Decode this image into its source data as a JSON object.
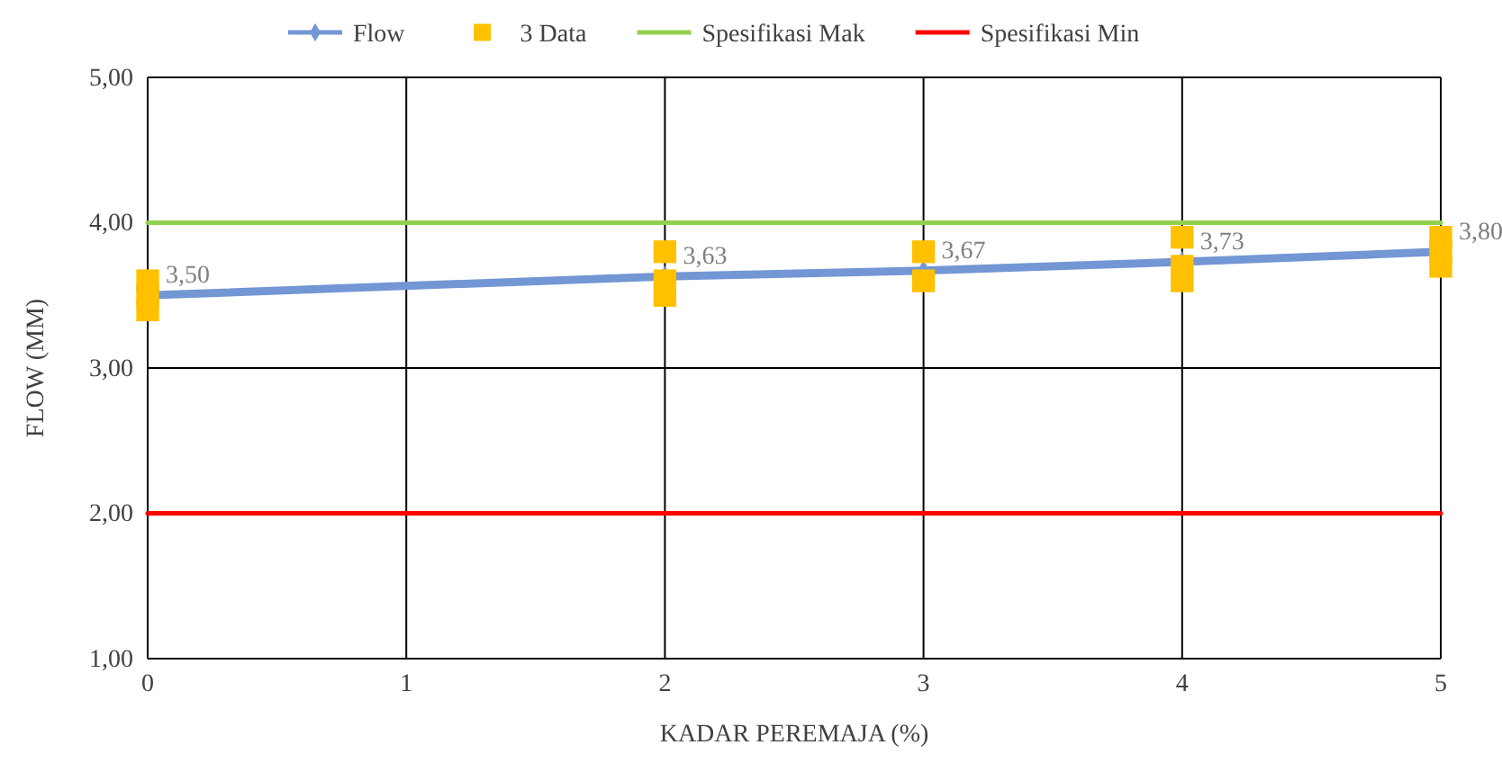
{
  "chart_data": {
    "type": "line",
    "xlabel": "KADAR PEREMAJA (%)",
    "ylabel": "FLOW (MM)",
    "xlim": [
      0,
      5
    ],
    "xticks": [
      0,
      1,
      2,
      3,
      4,
      5
    ],
    "ylim": [
      1,
      5
    ],
    "yticks": [
      {
        "value": 1,
        "label": "1,00"
      },
      {
        "value": 2,
        "label": "2,00"
      },
      {
        "value": 3,
        "label": "3,00"
      },
      {
        "value": 4,
        "label": "4,00"
      },
      {
        "value": 5,
        "label": "5,00"
      }
    ],
    "grid": true,
    "legend": "top",
    "series": [
      {
        "name": "Flow",
        "color": "#7396d4",
        "marker": "diamond",
        "x": [
          0,
          2,
          3,
          4,
          5
        ],
        "values": [
          3.5,
          3.63,
          3.67,
          3.73,
          3.8
        ],
        "value_labels": [
          "3,50",
          "3,63",
          "3,67",
          "3,73",
          "3,80"
        ]
      },
      {
        "name": "3 Data",
        "type": "scatter",
        "color": "#ffc000",
        "marker": "square",
        "x": [
          0,
          0,
          0,
          2,
          2,
          2,
          3,
          3,
          4,
          4,
          4,
          5,
          5,
          5
        ],
        "values": [
          3.6,
          3.5,
          3.4,
          3.8,
          3.6,
          3.5,
          3.8,
          3.6,
          3.9,
          3.7,
          3.6,
          3.9,
          3.8,
          3.7
        ]
      },
      {
        "name": "Spesifikasi Mak",
        "type": "line",
        "color": "#92d050",
        "marker": "none",
        "x": [
          0,
          5
        ],
        "values": [
          4,
          4
        ]
      },
      {
        "name": "Spesifikasi Min",
        "type": "line",
        "color": "#ff0000",
        "marker": "none",
        "x": [
          0,
          5
        ],
        "values": [
          2,
          2
        ]
      }
    ]
  }
}
